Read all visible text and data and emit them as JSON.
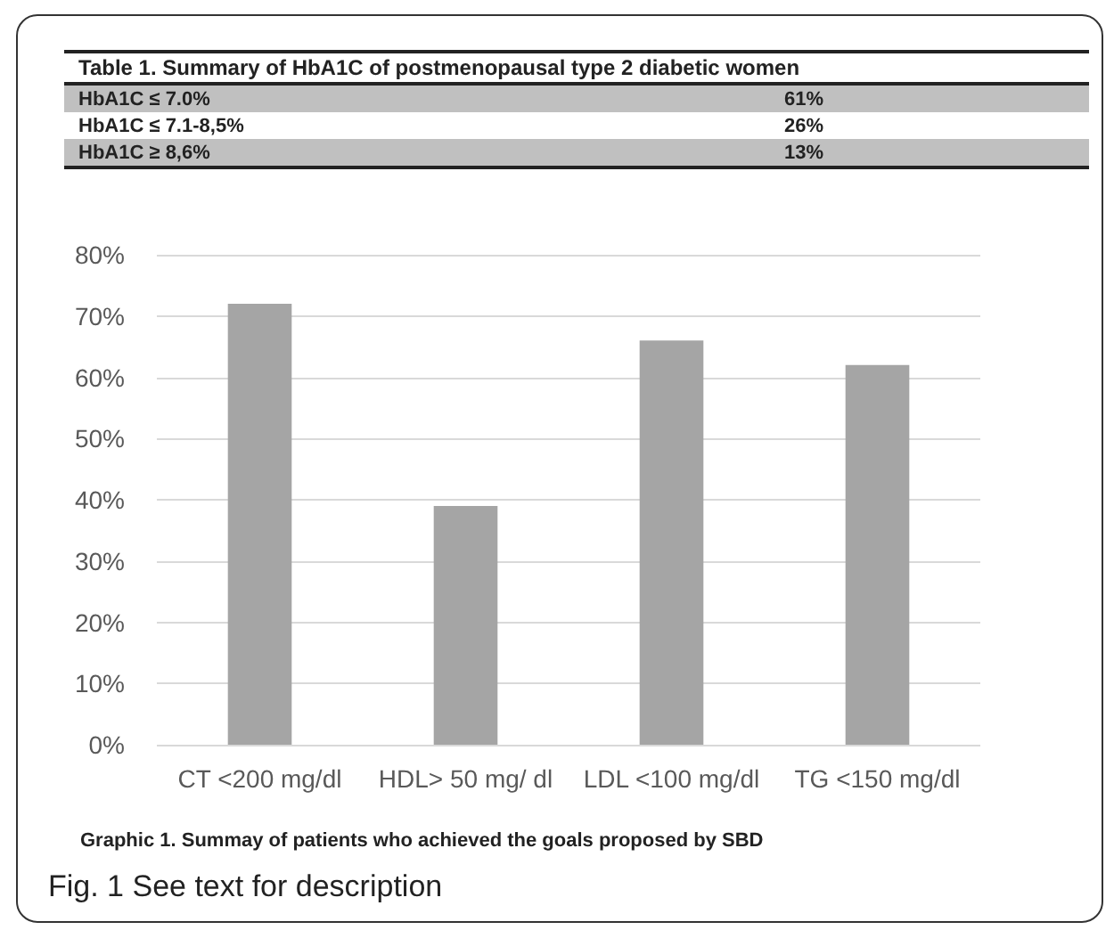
{
  "chart_data": [
    {
      "type": "other",
      "title": "Table 1. Summary of HbA1C of postmenopausal type 2 diabetic women",
      "categories": [
        "HbA1C ≤ 7.0%",
        "HbA1C ≤ 7.1-8,5%",
        "HbA1C  ≥ 8,6%"
      ],
      "value_labels": [
        "61%",
        "26%",
        "13%"
      ],
      "colors": [
        "#c0c0c0",
        "#ffffff",
        "#c0c0c0"
      ]
    },
    {
      "type": "bar",
      "categories": [
        "CT <200 mg/dl",
        "HDL> 50 mg/ dl",
        "LDL <100 mg/dl",
        "TG <150 mg/dl"
      ],
      "values": [
        72,
        39,
        66,
        62
      ],
      "color": "#a5a5a5",
      "ylim": [
        0,
        80
      ],
      "yticks": [
        {
          "value": 0,
          "label": "0%"
        },
        {
          "value": 10,
          "label": "10%"
        },
        {
          "value": 20,
          "label": "20%"
        },
        {
          "value": 30,
          "label": "30%"
        },
        {
          "value": 40,
          "label": "40%"
        },
        {
          "value": 50,
          "label": "50%"
        },
        {
          "value": 60,
          "label": "60%"
        },
        {
          "value": 70,
          "label": "70%"
        },
        {
          "value": 80,
          "label": "80%"
        }
      ],
      "grid": "y",
      "annotations": [
        "Graphic 1. Summay of patients who achieved the goals proposed by SBD",
        "Fig. 1  See text for description"
      ]
    }
  ]
}
